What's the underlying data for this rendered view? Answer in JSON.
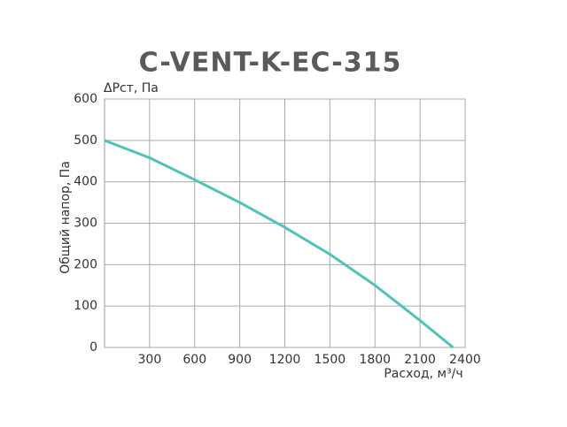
{
  "chart_data": {
    "type": "line",
    "title": "C-VENT-K-EC-315",
    "y_label_top": "ΔPст, Па",
    "y_label": "Общий напор, Па",
    "x_label": "Расход, м³/ч",
    "x": [
      0,
      300,
      600,
      900,
      1200,
      1500,
      1800,
      2100,
      2320
    ],
    "series": [
      {
        "name": "C-VENT-K-EC-315",
        "color": "#4ec3b9",
        "values": [
          500,
          458,
          405,
          350,
          290,
          225,
          150,
          65,
          0
        ]
      }
    ],
    "xlim": [
      0,
      2400
    ],
    "xticks": [
      300,
      600,
      900,
      1200,
      1500,
      1800,
      2100,
      2400
    ],
    "ylim": [
      0,
      600
    ],
    "yticks": [
      0,
      100,
      200,
      300,
      400,
      500,
      600
    ],
    "grid": true
  }
}
